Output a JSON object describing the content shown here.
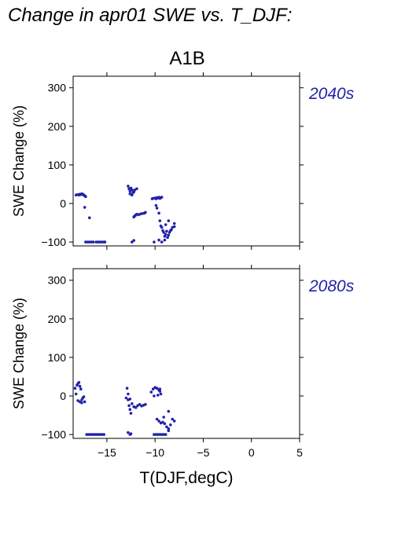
{
  "figure": {
    "title": "Change in apr01 SWE vs. T_DJF:",
    "scenario": "A1B",
    "series_color": "#2222aa"
  },
  "chart_data": [
    {
      "type": "scatter",
      "panel_label": "2040s",
      "ylabel": "SWE Change (%)",
      "xlabel": "",
      "xlim": [
        -18.5,
        5
      ],
      "ylim": [
        -110,
        330
      ],
      "xticks": [
        -15,
        -10,
        -5,
        0,
        5
      ],
      "yticks": [
        -100,
        0,
        100,
        200,
        300
      ],
      "xtick_labels": [
        "",
        "",
        "",
        "",
        ""
      ],
      "ytick_labels": [
        "−100",
        "0",
        "100",
        "200",
        "300"
      ],
      "grid": false,
      "points": [
        [
          -18.2,
          22
        ],
        [
          -18.0,
          23
        ],
        [
          -17.9,
          22
        ],
        [
          -17.8,
          24
        ],
        [
          -17.7,
          23
        ],
        [
          -17.6,
          25
        ],
        [
          -17.5,
          24
        ],
        [
          -17.4,
          22
        ],
        [
          -17.3,
          20
        ],
        [
          -17.2,
          18
        ],
        [
          -17.3,
          -10
        ],
        [
          -16.8,
          -37
        ],
        [
          -17.2,
          -100
        ],
        [
          -17.0,
          -100
        ],
        [
          -16.8,
          -100
        ],
        [
          -16.6,
          -100
        ],
        [
          -16.4,
          -100
        ],
        [
          -16.1,
          -100
        ],
        [
          -15.9,
          -100
        ],
        [
          -15.7,
          -100
        ],
        [
          -15.5,
          -100
        ],
        [
          -15.3,
          -100
        ],
        [
          -15.2,
          -100
        ],
        [
          -12.8,
          45
        ],
        [
          -12.7,
          38
        ],
        [
          -12.6,
          32
        ],
        [
          -12.5,
          40
        ],
        [
          -12.4,
          35
        ],
        [
          -12.3,
          28
        ],
        [
          -12.2,
          30
        ],
        [
          -12.1,
          35
        ],
        [
          -11.9,
          38
        ],
        [
          -12.6,
          25
        ],
        [
          -12.4,
          22
        ],
        [
          -12.2,
          -35
        ],
        [
          -12.1,
          -32
        ],
        [
          -12.0,
          -30
        ],
        [
          -11.9,
          -28
        ],
        [
          -11.7,
          -29
        ],
        [
          -11.5,
          -27
        ],
        [
          -11.3,
          -26
        ],
        [
          -11.1,
          -25
        ],
        [
          -11.0,
          -23
        ],
        [
          -12.4,
          -100
        ],
        [
          -12.2,
          -96
        ],
        [
          -10.3,
          12
        ],
        [
          -10.2,
          13
        ],
        [
          -10.0,
          14
        ],
        [
          -9.9,
          12
        ],
        [
          -9.8,
          15
        ],
        [
          -9.7,
          14
        ],
        [
          -9.6,
          16
        ],
        [
          -9.5,
          13
        ],
        [
          -9.4,
          15
        ],
        [
          -9.3,
          16
        ],
        [
          -9.9,
          -5
        ],
        [
          -9.8,
          -12
        ],
        [
          -9.6,
          -25
        ],
        [
          -9.5,
          -45
        ],
        [
          -9.4,
          -58
        ],
        [
          -9.3,
          -62
        ],
        [
          -9.2,
          -70
        ],
        [
          -9.1,
          -75
        ],
        [
          -9.0,
          -85
        ],
        [
          -8.9,
          -80
        ],
        [
          -8.8,
          -72
        ],
        [
          -8.7,
          -88
        ],
        [
          -8.6,
          -82
        ],
        [
          -8.5,
          -75
        ],
        [
          -8.4,
          -70
        ],
        [
          -8.3,
          -68
        ],
        [
          -8.2,
          -62
        ],
        [
          -8.6,
          -45
        ],
        [
          -8.9,
          -55
        ],
        [
          -8.0,
          -52
        ],
        [
          -8.0,
          -60
        ],
        [
          -9.6,
          -95
        ],
        [
          -9.3,
          -100
        ],
        [
          -9.0,
          -95
        ],
        [
          -10.1,
          -100
        ]
      ]
    },
    {
      "type": "scatter",
      "panel_label": "2080s",
      "ylabel": "SWE Change (%)",
      "xlabel": "T(DJF,degC)",
      "xlim": [
        -18.5,
        5
      ],
      "ylim": [
        -110,
        330
      ],
      "xticks": [
        -15,
        -10,
        -5,
        0,
        5
      ],
      "yticks": [
        -100,
        0,
        100,
        200,
        300
      ],
      "xtick_labels": [
        "−15",
        "−10",
        "−5",
        "0",
        "5"
      ],
      "ytick_labels": [
        "−100",
        "0",
        "100",
        "200",
        "300"
      ],
      "grid": false,
      "points": [
        [
          -18.3,
          20
        ],
        [
          -18.1,
          28
        ],
        [
          -18.0,
          32
        ],
        [
          -17.9,
          35
        ],
        [
          -17.8,
          25
        ],
        [
          -17.7,
          18
        ],
        [
          -18.2,
          5
        ],
        [
          -18.0,
          -12
        ],
        [
          -17.8,
          -15
        ],
        [
          -17.6,
          -10
        ],
        [
          -17.5,
          -5
        ],
        [
          -17.4,
          -2
        ],
        [
          -17.3,
          -15
        ],
        [
          -17.6,
          -18
        ],
        [
          -17.1,
          -100
        ],
        [
          -16.9,
          -100
        ],
        [
          -16.7,
          -100
        ],
        [
          -16.5,
          -100
        ],
        [
          -16.3,
          -100
        ],
        [
          -16.1,
          -100
        ],
        [
          -15.9,
          -100
        ],
        [
          -15.7,
          -100
        ],
        [
          -15.5,
          -100
        ],
        [
          -15.3,
          -100
        ],
        [
          -13.0,
          -5
        ],
        [
          -12.9,
          20
        ],
        [
          -12.8,
          -10
        ],
        [
          -12.7,
          -25
        ],
        [
          -12.6,
          -35
        ],
        [
          -12.5,
          -45
        ],
        [
          -12.8,
          5
        ],
        [
          -12.6,
          -8
        ],
        [
          -12.8,
          -95
        ],
        [
          -12.6,
          -100
        ],
        [
          -12.5,
          -98
        ],
        [
          -12.4,
          -20
        ],
        [
          -12.2,
          -28
        ],
        [
          -12.0,
          -30
        ],
        [
          -11.8,
          -25
        ],
        [
          -11.6,
          -22
        ],
        [
          -11.4,
          -26
        ],
        [
          -11.2,
          -24
        ],
        [
          -11.0,
          -22
        ],
        [
          -10.4,
          10
        ],
        [
          -10.2,
          18
        ],
        [
          -10.0,
          22
        ],
        [
          -9.8,
          20
        ],
        [
          -9.6,
          15
        ],
        [
          -9.5,
          12
        ],
        [
          -9.4,
          5
        ],
        [
          -9.7,
          2
        ],
        [
          -10.1,
          0
        ],
        [
          -9.5,
          18
        ],
        [
          -9.8,
          -60
        ],
        [
          -9.6,
          -65
        ],
        [
          -9.4,
          -70
        ],
        [
          -9.2,
          -68
        ],
        [
          -9.0,
          -72
        ],
        [
          -8.8,
          -80
        ],
        [
          -8.6,
          -85
        ],
        [
          -8.4,
          -75
        ],
        [
          -8.2,
          -60
        ],
        [
          -8.0,
          -65
        ],
        [
          -8.6,
          -40
        ],
        [
          -9.1,
          -55
        ],
        [
          -10.1,
          -100
        ],
        [
          -9.9,
          -100
        ],
        [
          -9.7,
          -100
        ],
        [
          -9.5,
          -100
        ],
        [
          -9.3,
          -100
        ],
        [
          -9.1,
          -100
        ],
        [
          -8.9,
          -100
        ],
        [
          -8.6,
          -90
        ]
      ]
    }
  ]
}
